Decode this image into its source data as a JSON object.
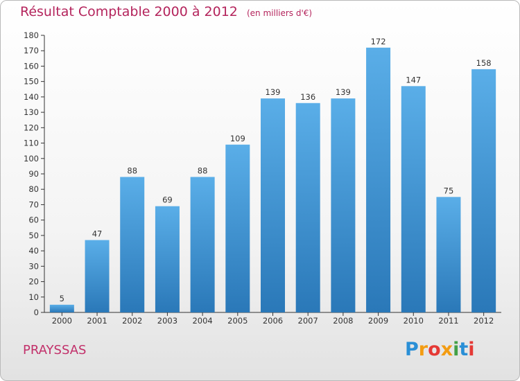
{
  "header": {
    "title": "Résultat Comptable 2000 à 2012",
    "unit": "(en milliers d'€)"
  },
  "footer": {
    "commune": "PRAYSSAS",
    "logo_letters": [
      "P",
      "r",
      "o",
      "x",
      "i",
      "t",
      "i"
    ]
  },
  "colors": {
    "accent": "#b4245c",
    "bar_top": "#5aaee8",
    "bar_bottom": "#2a78b8"
  },
  "chart_data": {
    "type": "bar",
    "categories": [
      "2000",
      "2001",
      "2002",
      "2003",
      "2004",
      "2005",
      "2006",
      "2007",
      "2008",
      "2009",
      "2010",
      "2011",
      "2012"
    ],
    "values": [
      5,
      47,
      88,
      69,
      88,
      109,
      139,
      136,
      139,
      172,
      147,
      75,
      158
    ],
    "title": "Résultat Comptable 2000 à 2012",
    "ylim": [
      0,
      180
    ],
    "yticks": [
      0,
      10,
      20,
      30,
      40,
      50,
      60,
      70,
      80,
      90,
      100,
      110,
      120,
      130,
      140,
      150,
      160,
      170,
      180
    ],
    "grid": false,
    "data_labels": true
  }
}
